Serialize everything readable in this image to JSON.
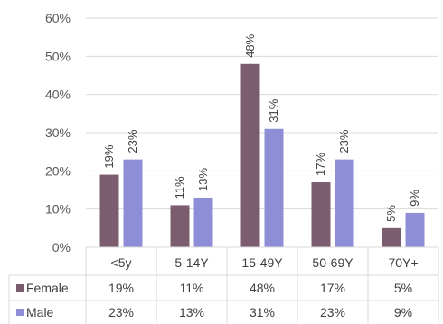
{
  "chart_data": {
    "type": "bar",
    "categories": [
      "<5y",
      "5-14Y",
      "15-49Y",
      "50-69Y",
      "70Y+"
    ],
    "series": [
      {
        "name": "Female",
        "values": [
          19,
          11,
          48,
          17,
          5
        ],
        "labels": [
          "19%",
          "11%",
          "48%",
          "17%",
          "5%"
        ],
        "color": "#7b5d6f"
      },
      {
        "name": "Male",
        "values": [
          23,
          13,
          31,
          23,
          9
        ],
        "labels": [
          "23%",
          "13%",
          "31%",
          "23%",
          "9%"
        ],
        "color": "#8e8ed6"
      }
    ],
    "ylim": [
      0,
      60
    ],
    "yticks": [
      0,
      10,
      20,
      30,
      40,
      50,
      60
    ],
    "ytick_labels": [
      "0%",
      "10%",
      "20%",
      "30%",
      "40%",
      "50%",
      "60%"
    ],
    "grid": true,
    "legend": "data-table",
    "title": "",
    "xlabel": "",
    "ylabel": ""
  }
}
